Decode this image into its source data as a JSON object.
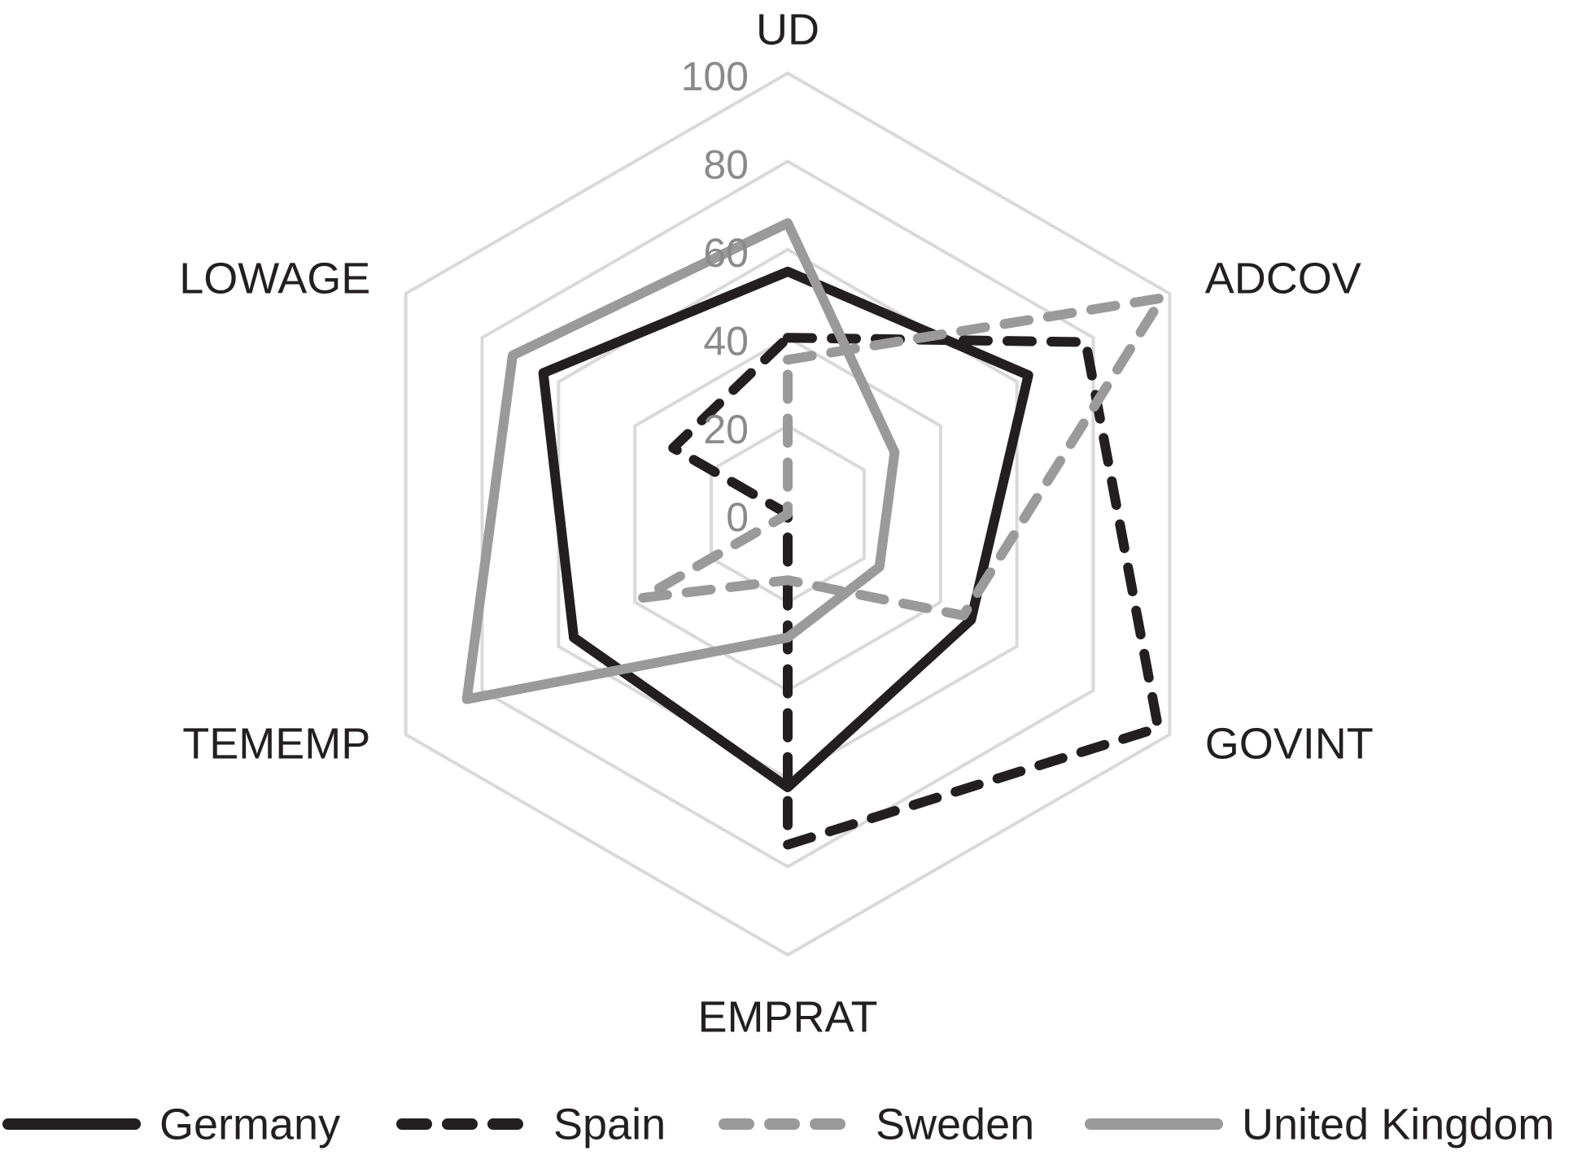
{
  "chart_data": {
    "type": "radar",
    "axes": [
      "UD",
      "ADCOV",
      "GOVINT",
      "EMPRAT",
      "TEMEMP",
      "LOWAGE"
    ],
    "rlim": [
      0,
      100
    ],
    "ticks": [
      "0",
      "20",
      "40",
      "60",
      "80",
      "100"
    ],
    "grid": true,
    "legend_position": "bottom",
    "series": [
      {
        "name": "Germany",
        "values": [
          55,
          63,
          48,
          62,
          56,
          64
        ],
        "color": "#231f20",
        "style": "solid"
      },
      {
        "name": "Spain",
        "values": [
          40,
          78,
          97,
          75,
          0,
          30
        ],
        "color": "#231f20",
        "style": "dashed"
      },
      {
        "name": "Sweden",
        "values": [
          35,
          98,
          46,
          15,
          38,
          0
        ],
        "color": "#9a9a9b",
        "style": "dashed"
      },
      {
        "name": "United Kingdom",
        "values": [
          66,
          28,
          24,
          28,
          84,
          72
        ],
        "color": "#9a9a9b",
        "style": "solid"
      }
    ]
  },
  "colors": {
    "grid": "#d9d9d9",
    "axis_text": "#231f20",
    "tick_text": "#8a8a8a"
  }
}
